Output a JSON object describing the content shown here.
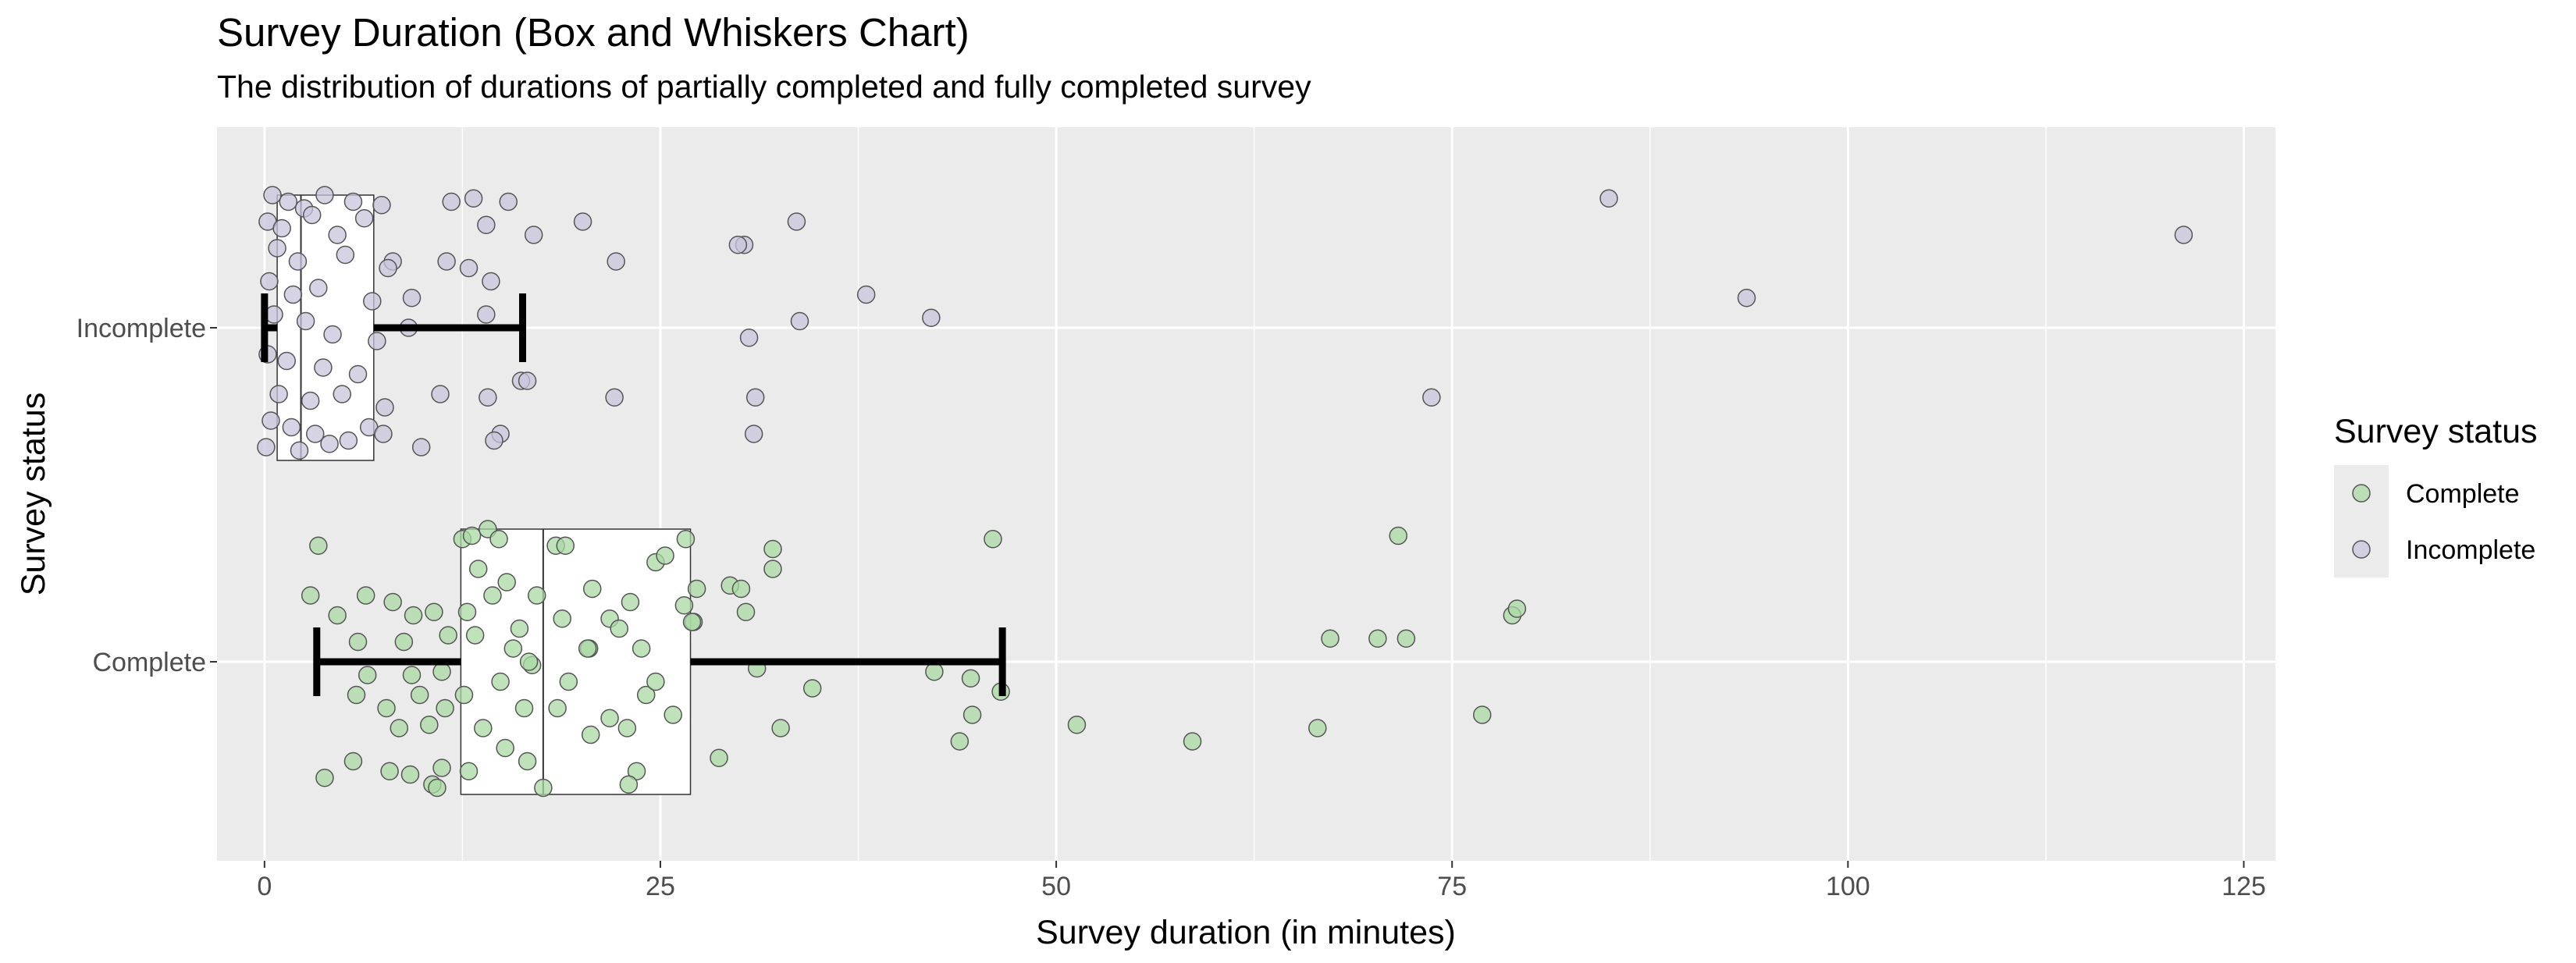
{
  "chart_data": {
    "type": "boxplot",
    "orientation": "horizontal",
    "title": "Survey Duration (Box and Whiskers Chart)",
    "subtitle": "The distribution of durations of partially completed and fully completed survey",
    "xlabel": "Survey duration (in minutes)",
    "ylabel": "Survey status",
    "xlim": [
      -3,
      127
    ],
    "x_ticks": [
      0,
      25,
      50,
      75,
      100,
      125
    ],
    "x_tick_labels": [
      "0",
      "25",
      "50",
      "75",
      "100",
      "125"
    ],
    "categories": [
      "Incomplete",
      "Complete"
    ],
    "grid": true,
    "legend": {
      "title": "Survey status",
      "position": "right",
      "entries": [
        {
          "label": "Complete",
          "color": "#a9d8a4"
        },
        {
          "label": "Incomplete",
          "color": "#c8c4dc"
        }
      ]
    },
    "colors": {
      "Complete": "#a9d8a4",
      "Incomplete": "#c8c4dc",
      "panel": "#ebebeb",
      "grid": "#ffffff"
    },
    "boxes": [
      {
        "name": "Incomplete",
        "whisker_low": 0,
        "q1": 0.8,
        "median": 2.3,
        "q3": 6.9,
        "whisker_high": 16.3
      },
      {
        "name": "Complete",
        "whisker_low": 3.3,
        "q1": 12.4,
        "median": 17.6,
        "q3": 26.9,
        "whisker_high": 46.6
      }
    ],
    "points": {
      "Incomplete": [
        {
          "x": 84.9,
          "y": 0.39
        },
        {
          "x": 121.2,
          "y": 0.28
        },
        {
          "x": 93.6,
          "y": 0.09
        },
        {
          "x": 73.7,
          "y": -0.21
        },
        {
          "x": 33.6,
          "y": 0.32
        },
        {
          "x": 30.3,
          "y": 0.25
        },
        {
          "x": 29.9,
          "y": 0.25
        },
        {
          "x": 38.0,
          "y": 0.1
        },
        {
          "x": 42.1,
          "y": 0.03
        },
        {
          "x": 33.8,
          "y": 0.02
        },
        {
          "x": 30.6,
          "y": -0.03
        },
        {
          "x": 31.0,
          "y": -0.21
        },
        {
          "x": 30.9,
          "y": -0.32
        },
        {
          "x": 22.1,
          "y": -0.21
        },
        {
          "x": 22.2,
          "y": 0.2
        },
        {
          "x": 20.1,
          "y": 0.32
        },
        {
          "x": 17.0,
          "y": 0.28
        },
        {
          "x": 15.4,
          "y": 0.38
        },
        {
          "x": 13.2,
          "y": 0.39
        },
        {
          "x": 14.0,
          "y": 0.31
        },
        {
          "x": 11.8,
          "y": 0.38
        },
        {
          "x": 11.5,
          "y": 0.2
        },
        {
          "x": 12.9,
          "y": 0.18
        },
        {
          "x": 14.3,
          "y": 0.14
        },
        {
          "x": 14.0,
          "y": 0.04
        },
        {
          "x": 9.3,
          "y": 0.09
        },
        {
          "x": 8.1,
          "y": 0.2
        },
        {
          "x": 9.1,
          "y": 0.0
        },
        {
          "x": 11.1,
          "y": -0.2
        },
        {
          "x": 14.1,
          "y": -0.21
        },
        {
          "x": 16.2,
          "y": -0.16
        },
        {
          "x": 16.6,
          "y": -0.16
        },
        {
          "x": 14.9,
          "y": -0.32
        },
        {
          "x": 14.5,
          "y": -0.34
        },
        {
          "x": 9.9,
          "y": -0.36
        },
        {
          "x": 0.5,
          "y": 0.4
        },
        {
          "x": 1.5,
          "y": 0.38
        },
        {
          "x": 2.5,
          "y": 0.36
        },
        {
          "x": 3.8,
          "y": 0.4
        },
        {
          "x": 5.6,
          "y": 0.38
        },
        {
          "x": 7.4,
          "y": 0.37
        },
        {
          "x": 0.2,
          "y": 0.32
        },
        {
          "x": 1.1,
          "y": 0.3
        },
        {
          "x": 3.0,
          "y": 0.34
        },
        {
          "x": 4.6,
          "y": 0.28
        },
        {
          "x": 6.3,
          "y": 0.33
        },
        {
          "x": 0.8,
          "y": 0.24
        },
        {
          "x": 2.1,
          "y": 0.2
        },
        {
          "x": 5.1,
          "y": 0.22
        },
        {
          "x": 7.8,
          "y": 0.18
        },
        {
          "x": 0.3,
          "y": 0.14
        },
        {
          "x": 1.8,
          "y": 0.1
        },
        {
          "x": 3.4,
          "y": 0.12
        },
        {
          "x": 6.8,
          "y": 0.08
        },
        {
          "x": 0.6,
          "y": 0.04
        },
        {
          "x": 2.6,
          "y": 0.02
        },
        {
          "x": 4.3,
          "y": -0.02
        },
        {
          "x": 7.1,
          "y": -0.04
        },
        {
          "x": 0.2,
          "y": -0.08
        },
        {
          "x": 1.4,
          "y": -0.1
        },
        {
          "x": 3.7,
          "y": -0.12
        },
        {
          "x": 5.9,
          "y": -0.14
        },
        {
          "x": 0.9,
          "y": -0.2
        },
        {
          "x": 2.9,
          "y": -0.22
        },
        {
          "x": 4.9,
          "y": -0.2
        },
        {
          "x": 7.6,
          "y": -0.24
        },
        {
          "x": 0.4,
          "y": -0.28
        },
        {
          "x": 1.7,
          "y": -0.3
        },
        {
          "x": 3.2,
          "y": -0.32
        },
        {
          "x": 5.3,
          "y": -0.34
        },
        {
          "x": 6.6,
          "y": -0.3
        },
        {
          "x": 0.1,
          "y": -0.36
        },
        {
          "x": 2.2,
          "y": -0.37
        },
        {
          "x": 4.1,
          "y": -0.35
        },
        {
          "x": 7.5,
          "y": -0.32
        }
      ],
      "Complete": [
        {
          "x": 3.4,
          "y": 0.35
        },
        {
          "x": 2.9,
          "y": 0.2
        },
        {
          "x": 3.8,
          "y": -0.35
        },
        {
          "x": 5.6,
          "y": -0.3
        },
        {
          "x": 4.6,
          "y": 0.14
        },
        {
          "x": 6.4,
          "y": 0.2
        },
        {
          "x": 5.9,
          "y": 0.06
        },
        {
          "x": 6.5,
          "y": -0.04
        },
        {
          "x": 5.8,
          "y": -0.1
        },
        {
          "x": 8.1,
          "y": 0.18
        },
        {
          "x": 9.4,
          "y": 0.14
        },
        {
          "x": 10.7,
          "y": 0.15
        },
        {
          "x": 8.8,
          "y": 0.06
        },
        {
          "x": 9.3,
          "y": -0.04
        },
        {
          "x": 7.7,
          "y": -0.14
        },
        {
          "x": 8.5,
          "y": -0.2
        },
        {
          "x": 9.8,
          "y": -0.1
        },
        {
          "x": 11.2,
          "y": -0.03
        },
        {
          "x": 11.6,
          "y": 0.08
        },
        {
          "x": 10.4,
          "y": -0.19
        },
        {
          "x": 11.4,
          "y": -0.14
        },
        {
          "x": 7.9,
          "y": -0.33
        },
        {
          "x": 9.2,
          "y": -0.34
        },
        {
          "x": 10.6,
          "y": -0.37
        },
        {
          "x": 11.2,
          "y": -0.32
        },
        {
          "x": 10.9,
          "y": -0.38
        },
        {
          "x": 12.5,
          "y": 0.37
        },
        {
          "x": 13.1,
          "y": 0.38
        },
        {
          "x": 14.1,
          "y": 0.4
        },
        {
          "x": 14.8,
          "y": 0.37
        },
        {
          "x": 13.5,
          "y": 0.28
        },
        {
          "x": 15.3,
          "y": 0.24
        },
        {
          "x": 12.8,
          "y": 0.15
        },
        {
          "x": 14.4,
          "y": 0.2
        },
        {
          "x": 16.1,
          "y": 0.1
        },
        {
          "x": 13.3,
          "y": 0.08
        },
        {
          "x": 15.7,
          "y": 0.04
        },
        {
          "x": 16.9,
          "y": -0.01
        },
        {
          "x": 14.9,
          "y": -0.06
        },
        {
          "x": 12.6,
          "y": -0.1
        },
        {
          "x": 16.4,
          "y": -0.14
        },
        {
          "x": 13.8,
          "y": -0.2
        },
        {
          "x": 15.2,
          "y": -0.26
        },
        {
          "x": 12.9,
          "y": -0.33
        },
        {
          "x": 16.6,
          "y": -0.3
        },
        {
          "x": 17.6,
          "y": -0.38
        },
        {
          "x": 17.2,
          "y": 0.2
        },
        {
          "x": 16.7,
          "y": 0.0
        },
        {
          "x": 18.4,
          "y": 0.35
        },
        {
          "x": 19.0,
          "y": 0.35
        },
        {
          "x": 20.7,
          "y": 0.22
        },
        {
          "x": 21.8,
          "y": 0.13
        },
        {
          "x": 22.4,
          "y": 0.1
        },
        {
          "x": 23.1,
          "y": 0.18
        },
        {
          "x": 18.8,
          "y": 0.13
        },
        {
          "x": 20.5,
          "y": 0.04
        },
        {
          "x": 20.4,
          "y": 0.04
        },
        {
          "x": 19.2,
          "y": -0.06
        },
        {
          "x": 23.8,
          "y": 0.04
        },
        {
          "x": 24.7,
          "y": 0.3
        },
        {
          "x": 25.3,
          "y": 0.32
        },
        {
          "x": 26.6,
          "y": 0.37
        },
        {
          "x": 24.1,
          "y": -0.1
        },
        {
          "x": 25.8,
          "y": -0.16
        },
        {
          "x": 18.5,
          "y": -0.14
        },
        {
          "x": 20.6,
          "y": -0.22
        },
        {
          "x": 21.8,
          "y": -0.17
        },
        {
          "x": 22.9,
          "y": -0.2
        },
        {
          "x": 23.5,
          "y": -0.33
        },
        {
          "x": 23.0,
          "y": -0.37
        },
        {
          "x": 26.5,
          "y": 0.17
        },
        {
          "x": 27.1,
          "y": 0.12
        },
        {
          "x": 27.3,
          "y": 0.22
        },
        {
          "x": 27.0,
          "y": 0.12
        },
        {
          "x": 24.7,
          "y": -0.06
        },
        {
          "x": 29.4,
          "y": 0.23
        },
        {
          "x": 30.1,
          "y": 0.22
        },
        {
          "x": 32.1,
          "y": 0.34
        },
        {
          "x": 32.1,
          "y": 0.28
        },
        {
          "x": 30.4,
          "y": 0.15
        },
        {
          "x": 31.1,
          "y": -0.02
        },
        {
          "x": 34.6,
          "y": -0.08
        },
        {
          "x": 32.6,
          "y": -0.2
        },
        {
          "x": 28.7,
          "y": -0.29
        },
        {
          "x": 42.3,
          "y": -0.03
        },
        {
          "x": 44.6,
          "y": -0.05
        },
        {
          "x": 46.0,
          "y": 0.37
        },
        {
          "x": 46.5,
          "y": -0.09
        },
        {
          "x": 44.7,
          "y": -0.16
        },
        {
          "x": 43.9,
          "y": -0.24
        },
        {
          "x": 51.3,
          "y": -0.19
        },
        {
          "x": 58.6,
          "y": -0.24
        },
        {
          "x": 66.5,
          "y": -0.2
        },
        {
          "x": 67.3,
          "y": 0.07
        },
        {
          "x": 70.3,
          "y": 0.07
        },
        {
          "x": 72.1,
          "y": 0.07
        },
        {
          "x": 71.6,
          "y": 0.38
        },
        {
          "x": 76.9,
          "y": -0.16
        },
        {
          "x": 78.8,
          "y": 0.14
        },
        {
          "x": 79.1,
          "y": 0.16
        }
      ]
    }
  }
}
